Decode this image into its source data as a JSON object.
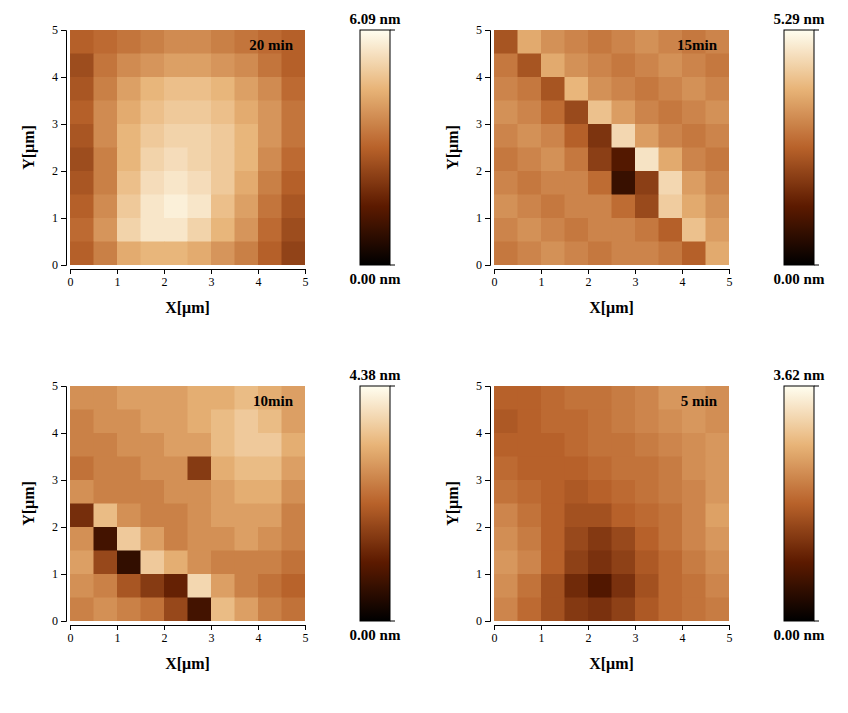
{
  "chart_data": [
    {
      "type": "heatmap",
      "title": "20 min",
      "x_label": "X[μm]",
      "y_label": "Y[μm]",
      "xlim": [
        0,
        5
      ],
      "ylim": [
        0,
        5
      ],
      "xticks": [
        0,
        1,
        2,
        3,
        4,
        5
      ],
      "yticks": [
        0,
        1,
        2,
        3,
        4,
        5
      ],
      "cells": [
        [
          3.0,
          3.2,
          3.4,
          3.6,
          3.8,
          3.8,
          3.6,
          3.4,
          3.2,
          3.0
        ],
        [
          2.6,
          3.4,
          3.8,
          4.0,
          4.2,
          4.2,
          4.0,
          3.8,
          3.4,
          3.0
        ],
        [
          2.8,
          3.6,
          4.2,
          4.6,
          4.8,
          4.8,
          4.6,
          4.2,
          3.8,
          3.2
        ],
        [
          3.0,
          3.8,
          4.4,
          4.8,
          5.0,
          5.0,
          4.8,
          4.4,
          4.0,
          3.4
        ],
        [
          2.8,
          3.8,
          4.6,
          5.0,
          5.2,
          5.2,
          5.0,
          4.6,
          4.0,
          3.4
        ],
        [
          2.6,
          3.6,
          4.6,
          5.2,
          5.4,
          5.2,
          5.0,
          4.6,
          3.8,
          3.2
        ],
        [
          2.8,
          3.6,
          4.8,
          5.4,
          5.6,
          5.4,
          5.0,
          4.4,
          3.6,
          3.0
        ],
        [
          3.0,
          3.8,
          5.0,
          5.6,
          5.8,
          5.6,
          4.8,
          4.2,
          3.4,
          2.8
        ],
        [
          3.2,
          4.0,
          5.2,
          5.6,
          5.6,
          5.2,
          4.6,
          4.0,
          3.2,
          2.6
        ],
        [
          3.0,
          3.6,
          4.4,
          4.6,
          4.6,
          4.4,
          4.0,
          3.6,
          3.0,
          2.4
        ]
      ],
      "colorbar_range": [
        0,
        6.09
      ],
      "colorbar_ticks": [
        {
          "value": 0,
          "label": "0.00 nm"
        },
        {
          "value": 6.09,
          "label": "6.09 nm"
        }
      ]
    },
    {
      "type": "heatmap",
      "title": "15min",
      "x_label": "X[μm]",
      "y_label": "Y[μm]",
      "xlim": [
        0,
        5
      ],
      "ylim": [
        0,
        5
      ],
      "xticks": [
        0,
        1,
        2,
        3,
        4,
        5
      ],
      "yticks": [
        0,
        1,
        2,
        3,
        4,
        5
      ],
      "cells": [
        [
          2.4,
          3.8,
          3.4,
          3.2,
          3.0,
          3.2,
          3.4,
          3.2,
          3.0,
          3.2
        ],
        [
          3.0,
          2.4,
          3.8,
          3.4,
          3.2,
          3.0,
          3.2,
          3.4,
          3.2,
          3.0
        ],
        [
          3.2,
          3.0,
          2.4,
          4.0,
          3.4,
          3.2,
          3.0,
          3.2,
          3.4,
          3.2
        ],
        [
          3.4,
          3.2,
          2.8,
          2.2,
          4.2,
          3.6,
          3.2,
          3.0,
          3.2,
          3.4
        ],
        [
          3.2,
          3.4,
          3.2,
          2.6,
          1.8,
          4.6,
          3.6,
          3.2,
          3.0,
          3.2
        ],
        [
          3.0,
          3.2,
          3.4,
          3.0,
          2.0,
          1.2,
          4.8,
          3.8,
          3.2,
          3.0
        ],
        [
          3.2,
          3.0,
          3.2,
          3.2,
          2.8,
          0.8,
          2.0,
          4.6,
          3.6,
          3.2
        ],
        [
          3.4,
          3.2,
          3.0,
          3.2,
          3.2,
          2.8,
          2.2,
          4.4,
          3.8,
          3.4
        ],
        [
          3.2,
          3.4,
          3.2,
          3.0,
          3.2,
          3.2,
          3.0,
          2.6,
          4.2,
          3.6
        ],
        [
          3.0,
          3.2,
          3.4,
          3.2,
          3.0,
          3.2,
          3.2,
          3.0,
          2.6,
          3.8
        ]
      ],
      "colorbar_range": [
        0,
        5.29
      ],
      "colorbar_ticks": [
        {
          "value": 0,
          "label": "0.00 nm"
        },
        {
          "value": 5.29,
          "label": "5.29 nm"
        }
      ]
    },
    {
      "type": "heatmap",
      "title": "10min",
      "x_label": "X[μm]",
      "y_label": "Y[μm]",
      "xlim": [
        0,
        5
      ],
      "ylim": [
        0,
        5
      ],
      "xticks": [
        0,
        1,
        2,
        3,
        4,
        5
      ],
      "yticks": [
        0,
        1,
        2,
        3,
        4,
        5
      ],
      "cells": [
        [
          2.8,
          2.8,
          3.0,
          3.0,
          3.0,
          3.2,
          3.2,
          3.4,
          3.2,
          3.0
        ],
        [
          2.6,
          2.8,
          2.8,
          3.0,
          3.0,
          3.2,
          3.4,
          3.6,
          3.4,
          3.0
        ],
        [
          2.6,
          2.6,
          2.8,
          2.8,
          3.0,
          3.0,
          3.4,
          3.6,
          3.6,
          3.2
        ],
        [
          2.4,
          2.6,
          2.6,
          2.8,
          2.8,
          1.6,
          3.2,
          3.4,
          3.4,
          3.0
        ],
        [
          2.8,
          2.6,
          2.6,
          2.6,
          2.8,
          2.8,
          3.0,
          3.2,
          3.2,
          2.8
        ],
        [
          1.4,
          3.4,
          2.8,
          2.6,
          2.6,
          2.8,
          3.0,
          3.0,
          3.0,
          2.6
        ],
        [
          2.8,
          0.8,
          3.6,
          3.0,
          2.6,
          2.8,
          2.8,
          3.0,
          2.8,
          2.6
        ],
        [
          3.0,
          1.8,
          0.6,
          3.6,
          3.2,
          2.8,
          2.6,
          2.6,
          2.6,
          2.4
        ],
        [
          2.8,
          2.6,
          2.0,
          1.6,
          1.2,
          3.8,
          3.0,
          2.6,
          2.4,
          2.2
        ],
        [
          2.6,
          2.8,
          2.6,
          2.4,
          1.8,
          0.8,
          3.4,
          3.0,
          2.6,
          2.4
        ]
      ],
      "colorbar_range": [
        0,
        4.38
      ],
      "colorbar_ticks": [
        {
          "value": 0,
          "label": "0.00 nm"
        },
        {
          "value": 4.38,
          "label": "4.38 nm"
        }
      ]
    },
    {
      "type": "heatmap",
      "title": "5 min",
      "x_label": "X[μm]",
      "y_label": "Y[μm]",
      "xlim": [
        0,
        5
      ],
      "ylim": [
        0,
        5
      ],
      "xticks": [
        0,
        1,
        2,
        3,
        4,
        5
      ],
      "yticks": [
        0,
        1,
        2,
        3,
        4,
        5
      ],
      "cells": [
        [
          1.8,
          1.8,
          1.9,
          2.0,
          2.0,
          2.1,
          2.2,
          2.4,
          2.4,
          2.3
        ],
        [
          1.7,
          1.8,
          1.9,
          1.9,
          2.0,
          2.1,
          2.2,
          2.3,
          2.4,
          2.3
        ],
        [
          1.8,
          1.8,
          1.8,
          1.9,
          2.0,
          2.0,
          2.1,
          2.2,
          2.3,
          2.4
        ],
        [
          1.9,
          1.8,
          1.8,
          1.8,
          1.9,
          2.0,
          2.0,
          2.1,
          2.3,
          2.4
        ],
        [
          2.0,
          1.9,
          1.8,
          1.7,
          1.8,
          1.9,
          2.0,
          2.1,
          2.2,
          2.4
        ],
        [
          2.2,
          2.0,
          1.8,
          1.6,
          1.6,
          1.8,
          1.9,
          2.0,
          2.2,
          2.5
        ],
        [
          2.3,
          2.1,
          1.8,
          1.5,
          1.3,
          1.5,
          1.8,
          2.0,
          2.2,
          2.4
        ],
        [
          2.4,
          2.2,
          1.8,
          1.4,
          1.2,
          1.4,
          1.7,
          1.9,
          2.1,
          2.3
        ],
        [
          2.3,
          2.0,
          1.6,
          1.1,
          0.8,
          1.2,
          1.6,
          1.9,
          2.0,
          2.2
        ],
        [
          2.2,
          1.9,
          1.6,
          1.3,
          1.2,
          1.4,
          1.7,
          1.9,
          2.0,
          2.1
        ]
      ],
      "colorbar_range": [
        0,
        3.62
      ],
      "colorbar_ticks": [
        {
          "value": 0,
          "label": "0.00 nm"
        },
        {
          "value": 3.62,
          "label": "3.62 nm"
        }
      ]
    }
  ]
}
